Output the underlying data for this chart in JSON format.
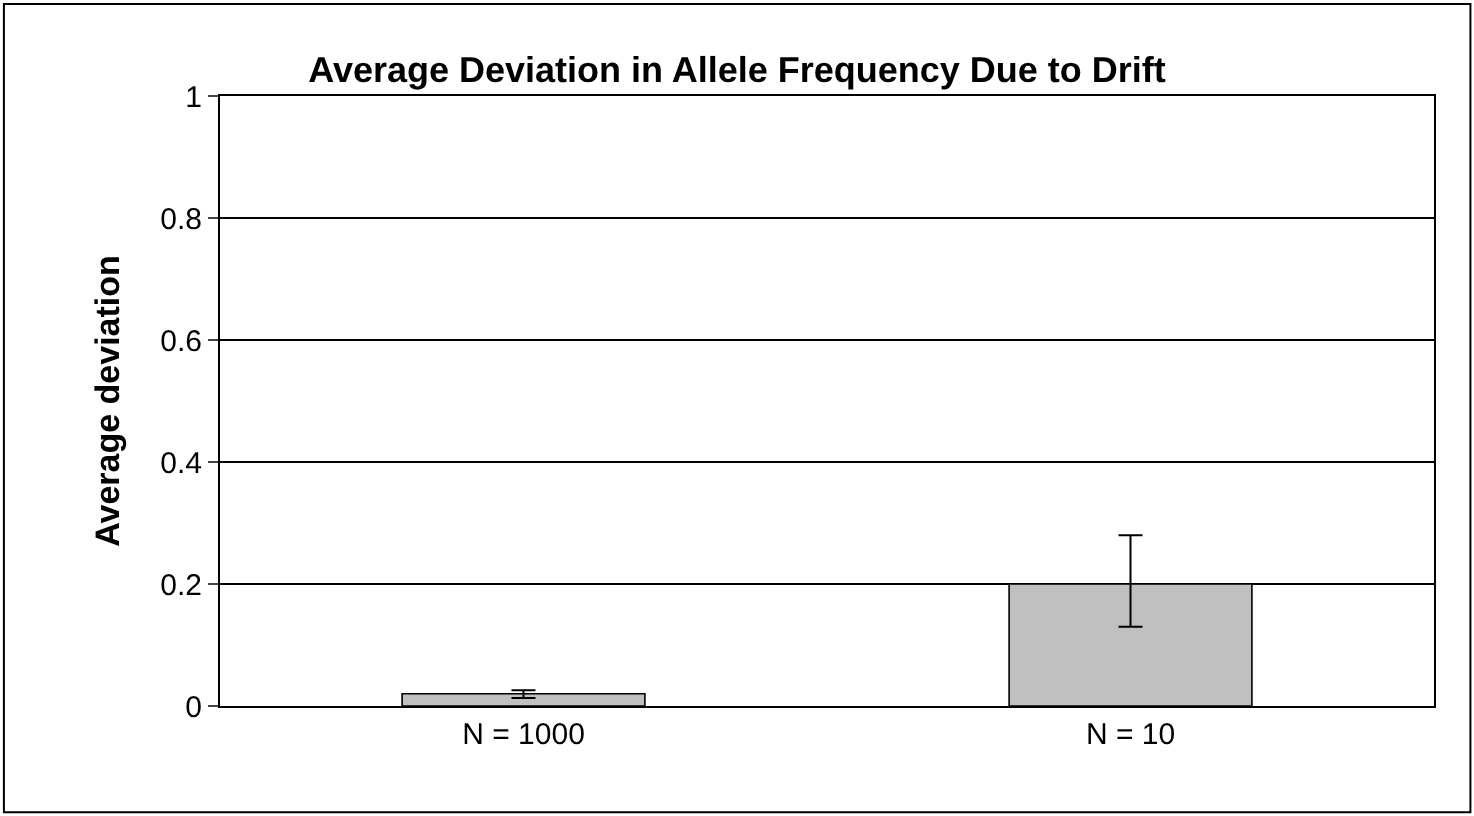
{
  "chart_data": {
    "type": "bar",
    "title": "Average Deviation in Allele Frequency Due to Drift",
    "ylabel": "Average deviation",
    "categories": [
      "N = 1000",
      "N = 10"
    ],
    "values": [
      0.02,
      0.2
    ],
    "errors": [
      [
        0.013,
        0.026
      ],
      [
        0.13,
        0.28
      ]
    ],
    "color": "#c0c0c0",
    "ylim": [
      0,
      1
    ],
    "yticks": [
      0,
      0.2,
      0.4,
      0.6,
      0.8,
      1
    ],
    "grid": "y"
  }
}
